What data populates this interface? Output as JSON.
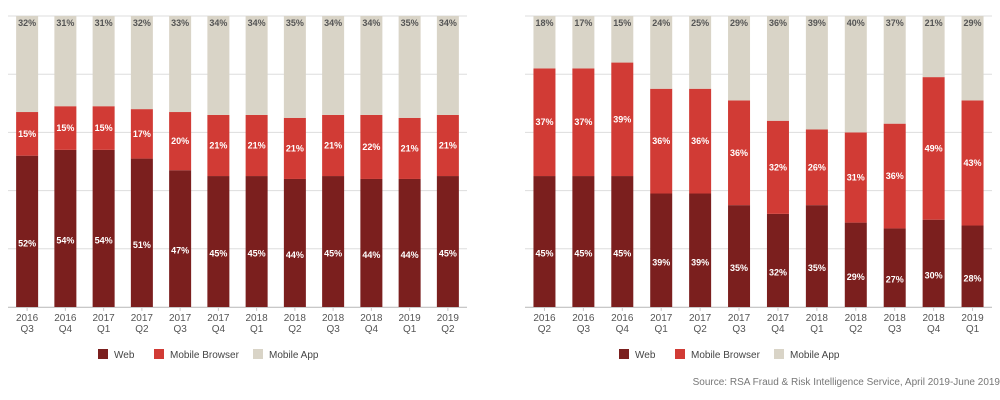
{
  "colors": {
    "web": "#7b1f1e",
    "mobile_browser": "#d13b35",
    "mobile_app": "#d9d4c7",
    "grid": "#dddddd",
    "axis": "#c8c8c8"
  },
  "chart_data": [
    {
      "type": "bar",
      "stacked": true,
      "title": "",
      "ylim": [
        0,
        100
      ],
      "grid": true,
      "legend_position": "bottom",
      "categories": [
        [
          "2016",
          "Q3"
        ],
        [
          "2016",
          "Q4"
        ],
        [
          "2017",
          "Q1"
        ],
        [
          "2017",
          "Q2"
        ],
        [
          "2017",
          "Q3"
        ],
        [
          "2017",
          "Q4"
        ],
        [
          "2018",
          "Q1"
        ],
        [
          "2018",
          "Q2"
        ],
        [
          "2018",
          "Q3"
        ],
        [
          "2018",
          "Q4"
        ],
        [
          "2019",
          "Q1"
        ],
        [
          "2019",
          "Q2"
        ]
      ],
      "series": [
        {
          "name": "Web",
          "values": [
            52,
            54,
            54,
            51,
            47,
            45,
            45,
            44,
            45,
            44,
            44,
            45
          ]
        },
        {
          "name": "Mobile Browser",
          "values": [
            15,
            15,
            15,
            17,
            20,
            21,
            21,
            21,
            21,
            22,
            21,
            21
          ]
        },
        {
          "name": "Mobile App",
          "values": [
            32,
            31,
            31,
            32,
            33,
            34,
            34,
            35,
            34,
            34,
            35,
            34
          ]
        }
      ]
    },
    {
      "type": "bar",
      "stacked": true,
      "title": "",
      "ylim": [
        0,
        100
      ],
      "grid": true,
      "legend_position": "bottom",
      "categories": [
        [
          "2016",
          "Q2"
        ],
        [
          "2016",
          "Q3"
        ],
        [
          "2016",
          "Q4"
        ],
        [
          "2017",
          "Q1"
        ],
        [
          "2017",
          "Q2"
        ],
        [
          "2017",
          "Q3"
        ],
        [
          "2017",
          "Q4"
        ],
        [
          "2018",
          "Q1"
        ],
        [
          "2018",
          "Q2"
        ],
        [
          "2018",
          "Q3"
        ],
        [
          "2018",
          "Q4"
        ],
        [
          "2019",
          "Q1"
        ]
      ],
      "series": [
        {
          "name": "Web",
          "values": [
            45,
            45,
            45,
            39,
            39,
            35,
            32,
            35,
            29,
            27,
            30,
            28
          ]
        },
        {
          "name": "Mobile Browser",
          "values": [
            37,
            37,
            39,
            36,
            36,
            36,
            32,
            26,
            31,
            36,
            49,
            43
          ]
        },
        {
          "name": "Mobile App",
          "values": [
            18,
            17,
            15,
            24,
            25,
            29,
            36,
            39,
            40,
            37,
            21,
            29
          ]
        }
      ]
    }
  ],
  "source": "Source: RSA Fraud & Risk Intelligence Service, April 2019-June 2019"
}
